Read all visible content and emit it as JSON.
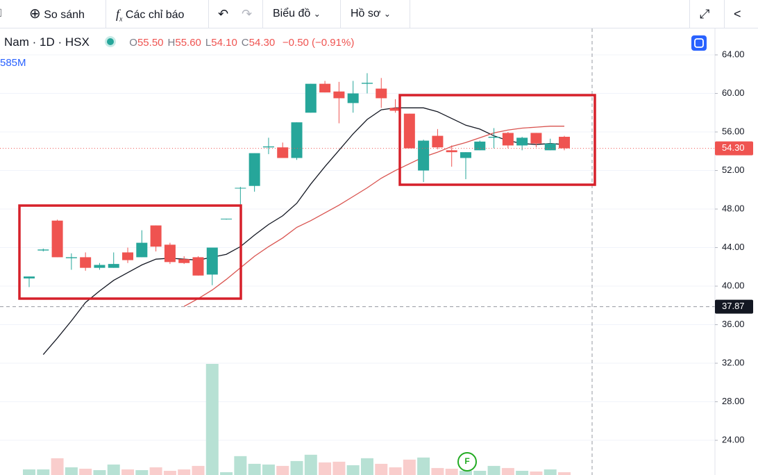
{
  "toolbar": {
    "compare": "So sánh",
    "indicators": "Các chỉ báo",
    "chart_type": "Biểu đồ",
    "profile": "Hồ sơ"
  },
  "legend": {
    "symbol": "Nam",
    "interval": "1D",
    "exchange": "HSX",
    "ohlc": [
      {
        "key": "O",
        "value": "55.50"
      },
      {
        "key": "H",
        "value": "55.60"
      },
      {
        "key": "L",
        "value": "54.10"
      },
      {
        "key": "C",
        "value": "54.30"
      }
    ],
    "change": "−0.50 (−0.91%)",
    "volume": "585M"
  },
  "chart_data": {
    "type": "candlestick",
    "ylim": [
      20.4,
      66.74
    ],
    "yticks": [
      {
        "value": 24,
        "label": "24.00"
      },
      {
        "value": 28,
        "label": "28.00"
      },
      {
        "value": 32,
        "label": "32.00"
      },
      {
        "value": 36,
        "label": "36.00"
      },
      {
        "value": 40,
        "label": "40.00"
      },
      {
        "value": 44,
        "label": "44.00"
      },
      {
        "value": 48,
        "label": "48.00"
      },
      {
        "value": 52,
        "label": "52.00"
      },
      {
        "value": 56,
        "label": "56.00"
      },
      {
        "value": 60,
        "label": "60.00"
      },
      {
        "value": 64,
        "label": "64.00"
      }
    ],
    "up_color": "#26a69a",
    "down_color": "#ef5350",
    "open": [
      40.8,
      43.7,
      46.8,
      42.9,
      43.0,
      41.9,
      41.9,
      43.5,
      43.0,
      46.3,
      44.3,
      42.8,
      43.0,
      41.2,
      47.0,
      50.2,
      50.4,
      54.4,
      54.4,
      53.3,
      58.0,
      61.0,
      60.2,
      59.0,
      61.0,
      60.5,
      58.5,
      57.9,
      52.0,
      55.6,
      54.1,
      53.3,
      54.1,
      55.4,
      55.9,
      54.6,
      55.9,
      54.1,
      55.5
    ],
    "high": [
      41.0,
      43.9,
      46.9,
      43.4,
      43.5,
      42.4,
      43.5,
      44.0,
      45.8,
      46.3,
      44.5,
      43.1,
      43.1,
      44.0,
      47.0,
      50.3,
      53.8,
      55.4,
      54.9,
      57.0,
      61.0,
      61.3,
      61.2,
      61.3,
      62.1,
      61.6,
      59.4,
      57.9,
      55.2,
      56.3,
      54.6,
      53.9,
      55.1,
      56.4,
      56.0,
      55.5,
      55.9,
      55.3,
      55.6
    ],
    "low": [
      39.9,
      43.6,
      43.0,
      41.7,
      41.6,
      41.7,
      41.9,
      42.4,
      43.0,
      43.6,
      42.3,
      42.3,
      41.1,
      40.1,
      46.9,
      48.4,
      49.8,
      53.7,
      53.3,
      53.1,
      58.0,
      60.1,
      56.9,
      58.0,
      60.0,
      58.5,
      58.0,
      54.3,
      50.8,
      54.2,
      52.4,
      51.1,
      54.1,
      54.3,
      54.3,
      54.1,
      54.4,
      54.1,
      54.1
    ],
    "close": [
      41.0,
      43.8,
      43.0,
      43.0,
      41.9,
      42.2,
      42.3,
      42.7,
      44.5,
      44.1,
      42.5,
      42.4,
      41.1,
      44.0,
      47.0,
      50.2,
      53.8,
      54.5,
      53.3,
      57.0,
      61.0,
      60.1,
      59.5,
      60.0,
      61.1,
      59.5,
      58.2,
      54.3,
      55.1,
      54.4,
      53.9,
      53.9,
      55.0,
      55.5,
      54.6,
      55.4,
      54.8,
      54.8,
      54.3
    ],
    "volume": [
      8,
      8,
      24,
      11,
      9,
      7,
      15,
      8,
      7,
      11,
      6,
      8,
      13,
      159,
      4,
      27,
      16,
      15,
      13,
      20,
      29,
      18,
      19,
      14,
      24,
      16,
      11,
      22,
      25,
      10,
      9,
      6,
      6,
      13,
      10,
      6,
      5,
      8,
      4
    ],
    "series": [
      {
        "color": "#131722",
        "values": [
          null,
          32.9,
          34.6,
          36.4,
          38.3,
          39.5,
          40.6,
          41.4,
          42.2,
          42.8,
          42.9,
          42.8,
          42.7,
          43.0,
          43.3,
          44.1,
          45.3,
          46.4,
          47.3,
          48.6,
          50.6,
          52.4,
          54.1,
          55.8,
          57.3,
          58.3,
          58.5,
          58.5,
          58.5,
          58.1,
          57.4,
          56.7,
          56.3,
          55.6,
          55.1,
          54.8,
          54.7,
          54.8,
          54.7
        ]
      },
      {
        "color": "#d9534f",
        "values": [
          null,
          null,
          null,
          null,
          null,
          null,
          null,
          null,
          null,
          null,
          null,
          37.9,
          38.7,
          39.6,
          40.7,
          41.9,
          43.1,
          44.1,
          45.0,
          46.1,
          46.8,
          47.6,
          48.4,
          49.3,
          50.2,
          51.2,
          52.0,
          52.7,
          53.4,
          53.9,
          54.5,
          54.9,
          55.4,
          55.9,
          56.2,
          56.4,
          56.5,
          56.6,
          56.6
        ]
      }
    ],
    "last_price": {
      "value": 54.3,
      "label": "54.30"
    },
    "crosshair": {
      "value": 37.87,
      "label": "37.87"
    }
  }
}
